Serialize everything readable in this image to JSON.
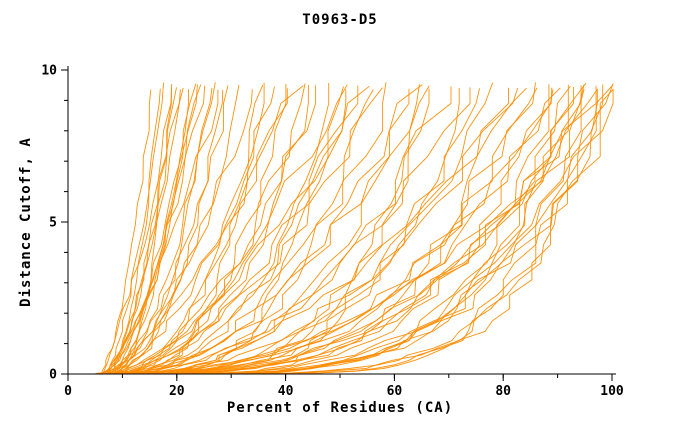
{
  "page": {
    "background": "#ffffff"
  },
  "chart_data": {
    "type": "line",
    "title": "T0963-D5",
    "xlabel": "Percent of Residues (CA)",
    "ylabel": "Distance Cutoff, A",
    "xlim": [
      0,
      100
    ],
    "ylim": [
      0,
      10
    ],
    "x_major_ticks": [
      0,
      20,
      40,
      60,
      80,
      100
    ],
    "x_tick_labels": [
      "0",
      "20",
      "40",
      "60",
      "80",
      "100"
    ],
    "x_minor_step": 10,
    "y_major_ticks": [
      0,
      5,
      10
    ],
    "y_tick_labels": [
      "0",
      "5",
      "10"
    ],
    "y_minor_step": 1,
    "grid": false,
    "legend_position": "none",
    "line_color": "#FF8C00",
    "axis_color": "#000000",
    "curve_model": "y = y_top * ((x - x_start) / (x_end - x_start)) ^ k, y_top ~ 9.5",
    "curves": [
      [
        6,
        15.5,
        1.6
      ],
      [
        6.5,
        17,
        2.0
      ],
      [
        7,
        18,
        1.4
      ],
      [
        5.5,
        19,
        2.2
      ],
      [
        6,
        20,
        1.8
      ],
      [
        7.5,
        21,
        1.5
      ],
      [
        6,
        22,
        2.4
      ],
      [
        8,
        23,
        1.7
      ],
      [
        5,
        24,
        2.0
      ],
      [
        7,
        25,
        1.5
      ],
      [
        6.5,
        26,
        2.6
      ],
      [
        8,
        27,
        1.8
      ],
      [
        6,
        28,
        1.4
      ],
      [
        7,
        29,
        2.2
      ],
      [
        5.5,
        30,
        1.9
      ],
      [
        8.5,
        24,
        1.3
      ],
      [
        7,
        19,
        2.8
      ],
      [
        6,
        21,
        1.2
      ],
      [
        6,
        32,
        2.0
      ],
      [
        7,
        34,
        1.6
      ],
      [
        8,
        36,
        2.4
      ],
      [
        6.5,
        38,
        1.8
      ],
      [
        7.5,
        40,
        2.8
      ],
      [
        6,
        42,
        1.5
      ],
      [
        8,
        44,
        2.2
      ],
      [
        7,
        46,
        1.9
      ],
      [
        6.5,
        48,
        3.0
      ],
      [
        8.5,
        50,
        1.7
      ],
      [
        7,
        52,
        2.5
      ],
      [
        6,
        54,
        2.0
      ],
      [
        7.5,
        56,
        3.2
      ],
      [
        8,
        58,
        1.8
      ],
      [
        6.5,
        60,
        2.3
      ],
      [
        7,
        35,
        3.5
      ],
      [
        6,
        45,
        2.7
      ],
      [
        8,
        50,
        3.8
      ],
      [
        7.5,
        55,
        1.6
      ],
      [
        6.5,
        40,
        2.1
      ],
      [
        7,
        62,
        2.4
      ],
      [
        6,
        64,
        3.0
      ],
      [
        8,
        66,
        2.0
      ],
      [
        7.5,
        68,
        3.5
      ],
      [
        6.5,
        70,
        2.6
      ],
      [
        7,
        72,
        4.0
      ],
      [
        8,
        74,
        2.2
      ],
      [
        6,
        76,
        3.2
      ],
      [
        7.5,
        78,
        2.8
      ],
      [
        6.5,
        80,
        4.5
      ],
      [
        7,
        82,
        2.4
      ],
      [
        8,
        84,
        3.6
      ],
      [
        6,
        85,
        2.0
      ],
      [
        7,
        65,
        5.0
      ],
      [
        7,
        86,
        3.0
      ],
      [
        6.5,
        88,
        4.2
      ],
      [
        8,
        90,
        2.6
      ],
      [
        7,
        92,
        5.0
      ],
      [
        6,
        94,
        3.4
      ],
      [
        7.5,
        96,
        4.5
      ],
      [
        8,
        98,
        2.8
      ],
      [
        6.5,
        100,
        3.8
      ],
      [
        7,
        100,
        5.5
      ],
      [
        6,
        99,
        2.4
      ],
      [
        7.5,
        97,
        6.0
      ],
      [
        8,
        95,
        3.2
      ],
      [
        6.5,
        93,
        4.8
      ],
      [
        7,
        91,
        2.9
      ],
      [
        6,
        89,
        5.2
      ],
      [
        7.5,
        100,
        4.0
      ],
      [
        8,
        98,
        6.5
      ],
      [
        6.5,
        96,
        3.0
      ],
      [
        7,
        94,
        7.0
      ],
      [
        6,
        100,
        4.4
      ]
    ]
  }
}
